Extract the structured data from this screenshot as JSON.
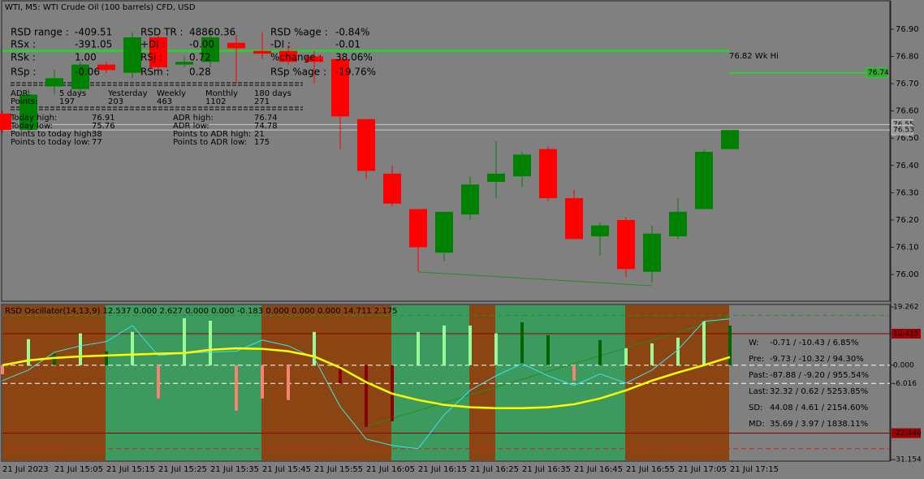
{
  "chart_data": [
    {
      "type": "candlestick",
      "title": "WTI, M5:  WTI Crude Oil (100 barrels) CFD, USD",
      "categories": [
        "21 Jul 2023",
        null,
        "21 Jul 15:05",
        null,
        "21 Jul 15:15",
        null,
        "21 Jul 15:25",
        null,
        "21 Jul 15:35",
        null,
        "21 Jul 15:45",
        null,
        "21 Jul 15:55",
        null,
        "21 Jul 16:05",
        null,
        "21 Jul 16:15",
        null,
        "21 Jul 16:25",
        null,
        "21 Jul 16:35",
        null,
        "21 Jul 16:45",
        null,
        "21 Jul 16:55",
        null,
        "21 Jul 17:05",
        null,
        "21 Jul 17:15"
      ],
      "open": [
        76.59,
        76.53,
        76.69,
        76.68,
        76.77,
        76.74,
        76.87,
        76.77,
        76.78,
        76.85,
        76.82,
        76.82,
        76.8,
        76.79,
        76.57,
        76.37,
        76.24,
        76.08,
        76.22,
        76.34,
        76.36,
        76.46,
        76.28,
        76.14,
        76.2,
        76.01,
        76.14,
        76.24,
        76.46
      ],
      "high": [
        76.6,
        76.68,
        76.75,
        76.78,
        76.78,
        76.89,
        76.88,
        76.8,
        76.9,
        76.88,
        76.89,
        76.84,
        76.82,
        76.81,
        76.57,
        76.4,
        76.24,
        76.23,
        76.36,
        76.49,
        76.45,
        76.47,
        76.31,
        76.19,
        76.21,
        76.18,
        76.28,
        76.46,
        76.53
      ],
      "low": [
        76.52,
        76.52,
        76.66,
        76.66,
        76.74,
        76.72,
        76.75,
        76.76,
        76.76,
        76.7,
        76.79,
        76.77,
        76.7,
        76.46,
        76.35,
        76.25,
        76.01,
        76.05,
        76.2,
        76.28,
        76.32,
        76.27,
        76.13,
        76.07,
        75.99,
        75.97,
        76.13,
        76.24,
        76.46
      ],
      "close": [
        76.53,
        76.66,
        76.72,
        76.77,
        76.75,
        76.87,
        76.76,
        76.78,
        76.87,
        76.83,
        76.81,
        76.78,
        76.78,
        76.58,
        76.38,
        76.26,
        76.1,
        76.23,
        76.33,
        76.37,
        76.44,
        76.28,
        76.13,
        76.18,
        76.02,
        76.15,
        76.23,
        76.45,
        76.53
      ],
      "up_color": "#008000",
      "down_color": "#ff0000",
      "ylim": [
        75.905,
        77.001
      ],
      "yticks": [
        {
          "value": 76.9,
          "label": "76.90"
        },
        {
          "value": 76.8,
          "label": "76.80"
        },
        {
          "value": 76.7,
          "label": "76.70"
        },
        {
          "value": 76.6,
          "label": "76.60"
        },
        {
          "value": 76.5,
          "label": "76.50"
        },
        {
          "value": 76.4,
          "label": "76.40"
        },
        {
          "value": 76.3,
          "label": "76.30"
        },
        {
          "value": 76.2,
          "label": "76.20"
        },
        {
          "value": 76.1,
          "label": "76.10"
        },
        {
          "value": 76.0,
          "label": "76.00"
        }
      ],
      "levels": [
        {
          "value": 76.82,
          "note": "76.82 Wk Hi",
          "color": "#33cc33"
        },
        {
          "value": 76.74,
          "label": "76.74",
          "color": "#33cc33"
        },
        {
          "value": 76.55,
          "label": "76.55",
          "color": "#c8c8c8"
        },
        {
          "value": 76.53,
          "label": "76.53",
          "color": "#c8c8c8"
        }
      ]
    },
    {
      "type": "oscillator",
      "title": "RSD Oscillator(14,13,9) 12.537 0.000 2.627 0.000 0.000 -0.183 0.000 0.000 0.000 14.711 2.175",
      "histogram": {
        "values": [
          -3,
          8.6,
          3.8,
          10.5,
          4.6,
          11.0,
          -11.0,
          15.5,
          14.7,
          -15.0,
          -11.0,
          -11.5,
          11.0,
          -6,
          -20.4,
          -18.5,
          11.0,
          13.1,
          13.1,
          10.5,
          14.2,
          9.9,
          -5.1,
          8.3,
          5.6,
          7.2,
          9.1,
          14.5,
          13.1
        ],
        "colors": [
          "#fa8072",
          "#98fb98",
          "#006400",
          "#98fb98",
          "#006400",
          "#98fb98",
          "#fa8072",
          "#98fb98",
          "#98fb98",
          "#fa8072",
          "#fa8072",
          "#fa8072",
          "#98fb98",
          "#8b0000",
          "#8b0000",
          "#8b0000",
          "#98fb98",
          "#98fb98",
          "#98fb98",
          "#98fb98",
          "#006400",
          "#006400",
          "#fa8072",
          "#006400",
          "#98fb98",
          "#98fb98",
          "#98fb98",
          "#98fb98",
          "#006400"
        ]
      },
      "series": [
        {
          "color": "#40e0f0",
          "values": [
            -5.1,
            -1.6,
            4.3,
            6.4,
            7.8,
            13.1,
            3.2,
            4.0,
            4.3,
            4.6,
            8.3,
            6.4,
            2.4,
            -13.7,
            -24.4,
            -26.5,
            -27.6,
            -16.4,
            -8.3,
            -3.5,
            0.5,
            -3.5,
            -6.7,
            -2.9,
            -5.9,
            -1.6,
            5.1,
            14.5,
            15.3
          ]
        },
        {
          "color": "#ffff00",
          "values": [
            0,
            1.6,
            2.4,
            2.9,
            3.2,
            3.5,
            3.8,
            4.0,
            5.1,
            5.6,
            5.4,
            4.6,
            2.9,
            -0.8,
            -5.6,
            -9.4,
            -11.5,
            -13.1,
            -13.9,
            -14.2,
            -14.2,
            -13.9,
            -12.9,
            -11.0,
            -8.3,
            -5.1,
            -2.4,
            0,
            2.7
          ]
        }
      ],
      "ylim": [
        -31.154,
        19.262
      ],
      "yticks": [
        19.262,
        10.415,
        {
          "value": 0,
          "label": "0.000"
        },
        -6.016,
        -22.446,
        -31.154
      ],
      "levels": [
        {
          "value": 16.4,
          "color": "#2e8b2e",
          "dash": true
        },
        {
          "value": 10.415,
          "color": "#8b0000",
          "dash": false
        },
        {
          "value": 0,
          "color": "#ffffff",
          "dash": true
        },
        {
          "value": -6.016,
          "color": "#ffffff",
          "dash": true
        },
        {
          "value": -22.446,
          "color": "#8b0000",
          "dash": false
        },
        {
          "value": -27.6,
          "color": "#cc2222",
          "dash": true
        }
      ],
      "stats": [
        [
          "W:",
          "-0.71 / -10.43 / 6.85%"
        ],
        [
          "Pre:",
          "-9.73 / -10.32 / 94.30%"
        ],
        [
          "Past:",
          "-87.88 / -9.20 / 955.54%"
        ],
        [
          "Last:",
          "32.32 / 0.62 / 5253.85%"
        ],
        [
          "SD:",
          "44.08 / 4.61 / 2154.60%"
        ],
        [
          "MD:",
          "35.69 / 3.97 / 1838.11%"
        ]
      ]
    }
  ],
  "info": {
    "block": [
      [
        [
          "RSD range :",
          "-409.51"
        ],
        [
          "RSD TR :",
          "48860.36"
        ],
        [
          "RSD %age :",
          "-0.84%"
        ]
      ],
      [
        [
          "RSx :",
          "-391.05"
        ],
        [
          "+DI :",
          "-0.00"
        ],
        [
          "-DI :",
          "-0.01"
        ]
      ],
      [
        [
          "RSk :",
          "1.00"
        ],
        [
          "RSj :",
          "0.72"
        ],
        [
          "%change :",
          "38.06%"
        ]
      ],
      [
        [
          "RSp :",
          "-0.06"
        ],
        [
          "RSm :",
          "0.28"
        ],
        [
          "RSp %age :",
          "-19.76%"
        ]
      ]
    ],
    "adr": [
      [
        "ADR:",
        "5 days",
        "Yesterday",
        "Weekly",
        "Monthly",
        "180 days"
      ],
      [
        "Points:",
        "197",
        "203",
        "463",
        "1102",
        "271"
      ]
    ],
    "levels": [
      [
        "Today high:",
        "76.91",
        "ADR high:",
        "76.74"
      ],
      [
        "Today low:",
        "75.76",
        "ADR low:",
        "74.78"
      ],
      [
        "Points to today high:",
        "38",
        "Points to ADR high:",
        "21"
      ],
      [
        "Points to today low:",
        "77",
        "Points to ADR low:",
        "175"
      ]
    ]
  }
}
